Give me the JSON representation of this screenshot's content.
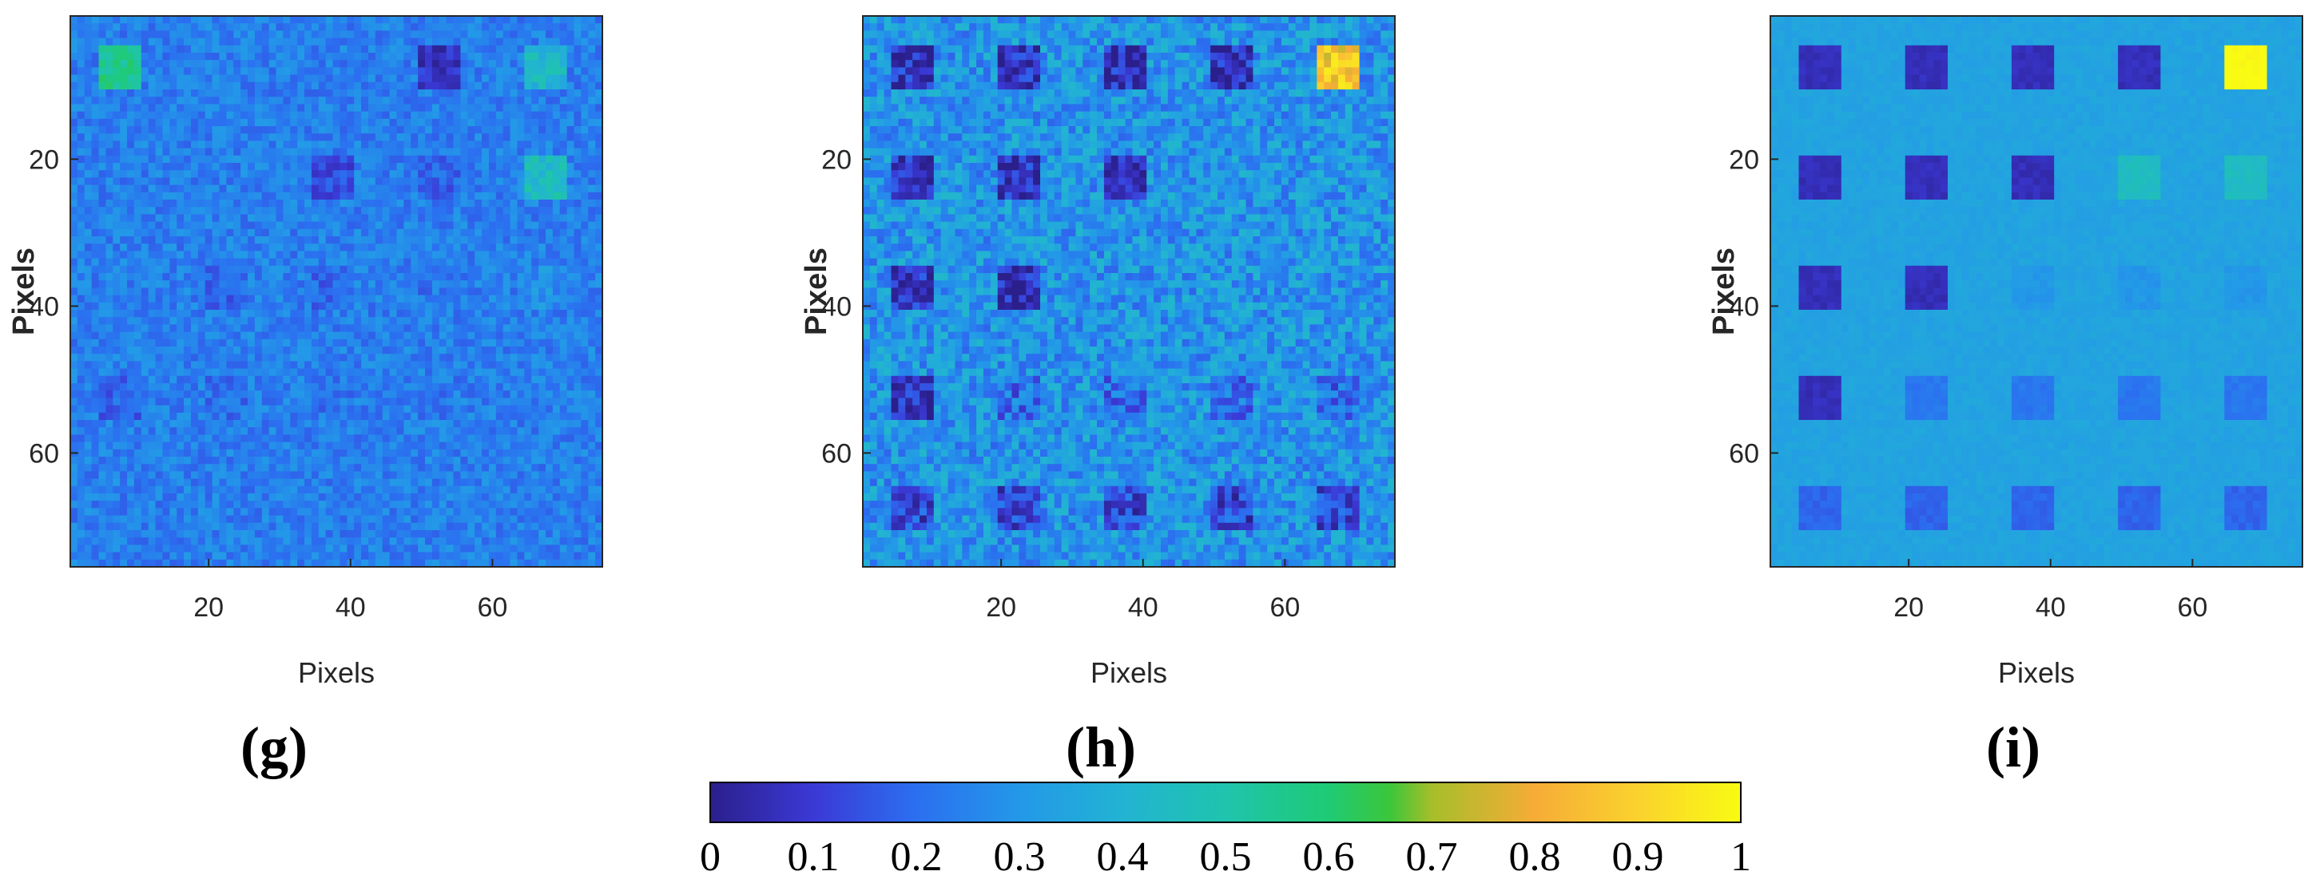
{
  "chart_data": [
    {
      "type": "heatmap",
      "panel_label": "(g)",
      "xlabel": "Pixels",
      "ylabel": "Pixels",
      "grid_size": 75,
      "xlim": [
        1,
        75
      ],
      "ylim": [
        75,
        1
      ],
      "x_ticks": [
        20,
        40,
        60
      ],
      "y_ticks": [
        20,
        40,
        60
      ],
      "block_rows": [
        8,
        23,
        38,
        53,
        68
      ],
      "block_cols": [
        8,
        23,
        38,
        53,
        68
      ],
      "block_size": 6,
      "background": 0.24,
      "noise": 0.07,
      "blocks": [
        [
          0.55,
          0.24,
          0.24,
          0.08,
          0.42
        ],
        [
          0.24,
          0.24,
          0.13,
          0.18,
          0.45
        ],
        [
          0.24,
          0.18,
          0.19,
          0.22,
          0.28
        ],
        [
          0.18,
          0.21,
          0.22,
          0.23,
          0.24
        ],
        [
          0.24,
          0.24,
          0.24,
          0.24,
          0.24
        ]
      ]
    },
    {
      "type": "heatmap",
      "panel_label": "(h)",
      "xlabel": "Pixels",
      "ylabel": "Pixels",
      "grid_size": 75,
      "xlim": [
        1,
        75
      ],
      "ylim": [
        75,
        1
      ],
      "x_ticks": [
        20,
        40,
        60
      ],
      "y_ticks": [
        20,
        40,
        60
      ],
      "block_rows": [
        8,
        23,
        38,
        53,
        68
      ],
      "block_cols": [
        8,
        23,
        38,
        53,
        68
      ],
      "block_size": 6,
      "background": 0.3,
      "noise": 0.12,
      "blocks": [
        [
          0.06,
          0.06,
          0.06,
          0.06,
          0.85
        ],
        [
          0.06,
          0.06,
          0.06,
          0.3,
          0.3
        ],
        [
          0.06,
          0.06,
          0.3,
          0.3,
          0.3
        ],
        [
          0.06,
          0.2,
          0.2,
          0.2,
          0.2
        ],
        [
          0.12,
          0.12,
          0.12,
          0.12,
          0.12
        ]
      ]
    },
    {
      "type": "heatmap",
      "panel_label": "(i)",
      "xlabel": "Pixels",
      "ylabel": "Pixels",
      "grid_size": 75,
      "xlim": [
        1,
        75
      ],
      "ylim": [
        75,
        1
      ],
      "x_ticks": [
        20,
        40,
        60
      ],
      "y_ticks": [
        20,
        40,
        60
      ],
      "block_rows": [
        8,
        23,
        38,
        53,
        68
      ],
      "block_cols": [
        8,
        23,
        38,
        53,
        68
      ],
      "block_size": 6,
      "background": 0.34,
      "noise": 0.02,
      "blocks": [
        [
          0.06,
          0.06,
          0.06,
          0.06,
          1.0
        ],
        [
          0.06,
          0.06,
          0.06,
          0.45,
          0.45
        ],
        [
          0.06,
          0.06,
          0.3,
          0.3,
          0.3
        ],
        [
          0.06,
          0.22,
          0.22,
          0.22,
          0.22
        ],
        [
          0.18,
          0.18,
          0.18,
          0.18,
          0.18
        ]
      ]
    }
  ],
  "colorbar": {
    "range": [
      0,
      1
    ],
    "ticks": [
      "0",
      "0.1",
      "0.2",
      "0.3",
      "0.4",
      "0.5",
      "0.6",
      "0.7",
      "0.8",
      "0.9",
      "1"
    ]
  },
  "colormap": [
    [
      0.0,
      "#2b1f8c"
    ],
    [
      0.1,
      "#3b39d6"
    ],
    [
      0.2,
      "#2b6ff0"
    ],
    [
      0.3,
      "#2398e8"
    ],
    [
      0.4,
      "#22b3d3"
    ],
    [
      0.5,
      "#1fc4ad"
    ],
    [
      0.6,
      "#1fca75"
    ],
    [
      0.66,
      "#3cc63a"
    ],
    [
      0.7,
      "#a6be2a"
    ],
    [
      0.8,
      "#f6ac37"
    ],
    [
      0.9,
      "#fad22e"
    ],
    [
      1.0,
      "#f9fb13"
    ]
  ]
}
